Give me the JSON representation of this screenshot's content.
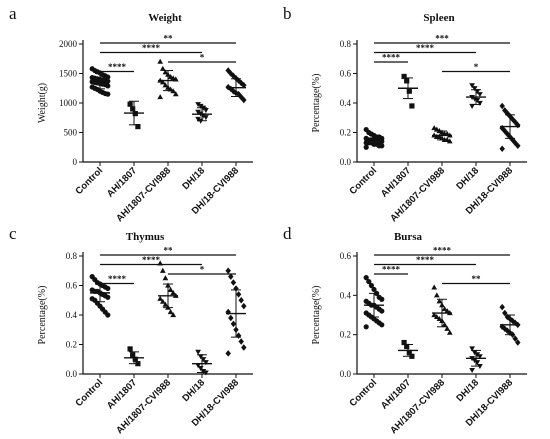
{
  "chart_data": [
    {
      "panel": "a",
      "type": "scatter",
      "title": "Weight",
      "ylabel": "Weight(g)",
      "ylim": [
        0,
        2000
      ],
      "yticks": [
        0,
        500,
        1000,
        1500,
        2000
      ],
      "categories": [
        "Control",
        "AH/1807",
        "AH/1807-CVI988",
        "DH/18",
        "DH/18-CVI988"
      ],
      "marker_shapes": [
        "circle",
        "square",
        "triangle",
        "triangle-down",
        "diamond"
      ],
      "means": [
        1370,
        830,
        1380,
        810,
        1260
      ],
      "sd": [
        130,
        200,
        170,
        110,
        150
      ],
      "points": [
        [
          1580,
          1550,
          1530,
          1510,
          1480,
          1460,
          1440,
          1430,
          1420,
          1410,
          1400,
          1390,
          1380,
          1370,
          1360,
          1350,
          1340,
          1330,
          1320,
          1310,
          1290,
          1270,
          1250,
          1230,
          1200,
          1180,
          1160,
          1150
        ],
        [
          980,
          900,
          820,
          600
        ],
        [
          1700,
          1580,
          1520,
          1480,
          1440,
          1420,
          1400,
          1380,
          1350,
          1300,
          1260,
          1230,
          1200,
          1150,
          1100
        ],
        [
          980,
          950,
          920,
          880,
          850,
          820,
          790,
          760,
          730,
          700
        ],
        [
          1550,
          1500,
          1460,
          1420,
          1380,
          1340,
          1300,
          1270,
          1240,
          1200,
          1170,
          1150,
          1100,
          1050
        ]
      ],
      "significance": [
        {
          "from": 0,
          "to": 4,
          "label": "**"
        },
        {
          "from": 0,
          "to": 3,
          "label": "****"
        },
        {
          "from": 2,
          "to": 4,
          "label": "*"
        },
        {
          "from": 0,
          "to": 1,
          "label": "****"
        }
      ]
    },
    {
      "panel": "b",
      "type": "scatter",
      "title": "Spleen",
      "ylabel": "Percentage(%)",
      "ylim": [
        0,
        0.8
      ],
      "yticks": [
        0.0,
        0.2,
        0.4,
        0.6,
        0.8
      ],
      "categories": [
        "Control",
        "AH/1807",
        "AH/1807-CVI988",
        "DH/18",
        "DH/18-CVI988"
      ],
      "marker_shapes": [
        "circle",
        "square",
        "triangle",
        "triangle-down",
        "diamond"
      ],
      "means": [
        0.15,
        0.5,
        0.18,
        0.44,
        0.24
      ],
      "sd": [
        0.03,
        0.07,
        0.03,
        0.05,
        0.08
      ],
      "points": [
        [
          0.22,
          0.2,
          0.19,
          0.18,
          0.17,
          0.17,
          0.16,
          0.16,
          0.15,
          0.15,
          0.15,
          0.14,
          0.14,
          0.14,
          0.13,
          0.13,
          0.13,
          0.12,
          0.12,
          0.11,
          0.11,
          0.1
        ],
        [
          0.58,
          0.55,
          0.48,
          0.38
        ],
        [
          0.23,
          0.22,
          0.21,
          0.2,
          0.19,
          0.19,
          0.18,
          0.18,
          0.17,
          0.17,
          0.16,
          0.15,
          0.15,
          0.14
        ],
        [
          0.52,
          0.5,
          0.48,
          0.46,
          0.44,
          0.43,
          0.42,
          0.4,
          0.38
        ],
        [
          0.38,
          0.35,
          0.33,
          0.31,
          0.29,
          0.27,
          0.25,
          0.23,
          0.21,
          0.19,
          0.17,
          0.15,
          0.13,
          0.11,
          0.09
        ]
      ],
      "significance": [
        {
          "from": 0,
          "to": 4,
          "label": "***"
        },
        {
          "from": 0,
          "to": 3,
          "label": "****"
        },
        {
          "from": 0,
          "to": 1,
          "label": "****"
        },
        {
          "from": 2,
          "to": 4,
          "label": "*"
        }
      ]
    },
    {
      "panel": "c",
      "type": "scatter",
      "title": "Thymus",
      "ylabel": "Percentage(%)",
      "ylim": [
        0,
        0.8
      ],
      "yticks": [
        0.0,
        0.2,
        0.4,
        0.6,
        0.8
      ],
      "categories": [
        "Control",
        "AH/1807",
        "AH/1807-CVI988",
        "DH/18",
        "DH/18-CVI988"
      ],
      "marker_shapes": [
        "circle",
        "square",
        "triangle",
        "triangle-down",
        "diamond"
      ],
      "means": [
        0.55,
        0.11,
        0.53,
        0.07,
        0.41
      ],
      "sd": [
        0.06,
        0.04,
        0.08,
        0.06,
        0.16
      ],
      "points": [
        [
          0.66,
          0.64,
          0.62,
          0.61,
          0.6,
          0.59,
          0.58,
          0.57,
          0.56,
          0.56,
          0.55,
          0.54,
          0.53,
          0.52,
          0.51,
          0.5,
          0.48,
          0.46,
          0.44,
          0.42,
          0.4
        ],
        [
          0.17,
          0.13,
          0.1,
          0.07
        ],
        [
          0.75,
          0.7,
          0.65,
          0.6,
          0.57,
          0.55,
          0.53,
          0.51,
          0.49,
          0.47,
          0.45,
          0.42,
          0.4
        ],
        [
          0.15,
          0.12,
          0.1,
          0.08,
          0.06,
          0.04,
          0.02,
          0.01
        ],
        [
          0.7,
          0.66,
          0.62,
          0.58,
          0.54,
          0.5,
          0.46,
          0.42,
          0.38,
          0.34,
          0.3,
          0.26,
          0.22,
          0.18,
          0.14
        ]
      ],
      "significance": [
        {
          "from": 0,
          "to": 4,
          "label": "**"
        },
        {
          "from": 0,
          "to": 3,
          "label": "****"
        },
        {
          "from": 2,
          "to": 4,
          "label": "*"
        },
        {
          "from": 0,
          "to": 1,
          "label": "****"
        }
      ]
    },
    {
      "panel": "d",
      "type": "scatter",
      "title": "Bursa",
      "ylabel": "Percentage(%)",
      "ylim": [
        0,
        0.6
      ],
      "yticks": [
        0.0,
        0.2,
        0.4,
        0.6
      ],
      "categories": [
        "Control",
        "AH/1807",
        "AH/1807-CVI988",
        "DH/18",
        "DH/18-CVI988"
      ],
      "marker_shapes": [
        "circle",
        "square",
        "triangle",
        "triangle-down",
        "diamond"
      ],
      "means": [
        0.35,
        0.12,
        0.31,
        0.08,
        0.25
      ],
      "sd": [
        0.06,
        0.03,
        0.07,
        0.04,
        0.05
      ],
      "points": [
        [
          0.49,
          0.47,
          0.45,
          0.43,
          0.41,
          0.39,
          0.38,
          0.37,
          0.36,
          0.35,
          0.35,
          0.34,
          0.33,
          0.32,
          0.31,
          0.3,
          0.29,
          0.28,
          0.27,
          0.26,
          0.25,
          0.24
        ],
        [
          0.16,
          0.14,
          0.11,
          0.09
        ],
        [
          0.44,
          0.4,
          0.37,
          0.35,
          0.33,
          0.32,
          0.31,
          0.3,
          0.29,
          0.28,
          0.27,
          0.25,
          0.23,
          0.21
        ],
        [
          0.13,
          0.11,
          0.1,
          0.09,
          0.08,
          0.07,
          0.06,
          0.04,
          0.02
        ],
        [
          0.34,
          0.31,
          0.29,
          0.28,
          0.27,
          0.26,
          0.25,
          0.24,
          0.23,
          0.22,
          0.21,
          0.2,
          0.18,
          0.16
        ]
      ],
      "significance": [
        {
          "from": 0,
          "to": 4,
          "label": "****"
        },
        {
          "from": 0,
          "to": 3,
          "label": "****"
        },
        {
          "from": 0,
          "to": 1,
          "label": "****"
        },
        {
          "from": 2,
          "to": 4,
          "label": "**"
        }
      ]
    }
  ]
}
